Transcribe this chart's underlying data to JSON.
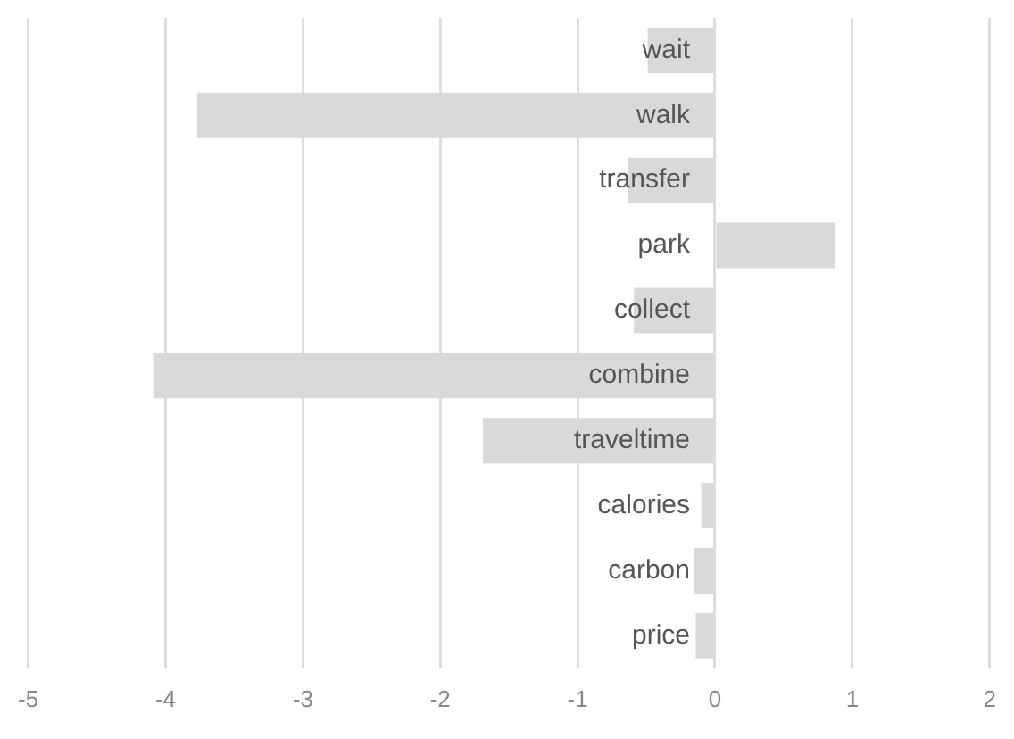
{
  "chart_data": {
    "type": "bar",
    "orientation": "horizontal",
    "categories": [
      "wait",
      "walk",
      "transfer",
      "park",
      "collect",
      "combine",
      "traveltime",
      "calories",
      "carbon",
      "price"
    ],
    "values": [
      -0.49,
      -3.77,
      -0.63,
      0.87,
      -0.59,
      -4.09,
      -1.69,
      -0.1,
      -0.15,
      -0.14
    ],
    "color": "#d9d9d9",
    "xlim": [
      -5,
      2
    ],
    "xticks": [
      -5,
      -4,
      -3,
      -2,
      -1,
      0,
      1,
      2
    ],
    "grid": "x"
  }
}
